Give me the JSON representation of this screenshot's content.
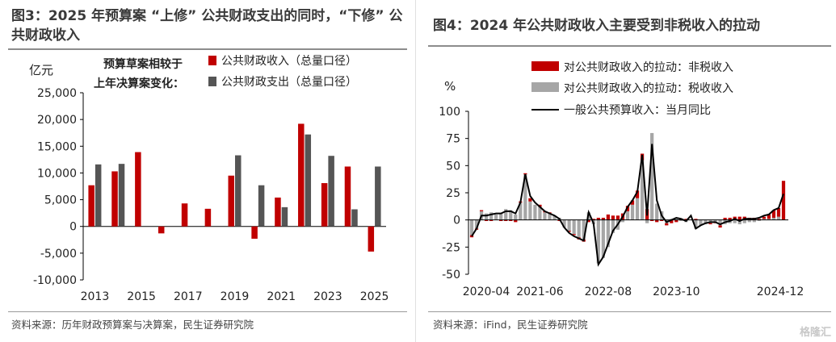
{
  "left": {
    "title": "图3：2025 年预算案 “上修” 公共财政支出的同时，“下修” 公共财政收入",
    "source": "资料来源：历年财政预算案与决算案，民生证券研究院"
  },
  "right": {
    "title": "图4：2024 年公共财政收入主要受到非税收入的拉动",
    "source": "资料来源：iFind，民生证券研究院"
  },
  "watermark": "格隆汇",
  "chart_data": [
    {
      "type": "bar",
      "unit_label": "亿元",
      "legend_note": [
        "预算草案相较于",
        "上年决算案变化："
      ],
      "legend_placement": "top",
      "categories": [
        "2013",
        "2014",
        "2015",
        "2016",
        "2017",
        "2018",
        "2019",
        "2020",
        "2021",
        "2022",
        "2023",
        "2024",
        "2025"
      ],
      "tick_labels": [
        "2013",
        "2015",
        "2017",
        "2019",
        "2021",
        "2023",
        "2025"
      ],
      "series": [
        {
          "name": "公共财政收入（总量口径）",
          "color": "#c00000",
          "values": [
            7700,
            10300,
            13900,
            -1300,
            4300,
            3300,
            9500,
            -2300,
            5400,
            19200,
            8100,
            11200,
            -4700
          ]
        },
        {
          "name": "公共财政支出（总量口径）",
          "color": "#555555",
          "values": [
            11600,
            11700,
            null,
            null,
            null,
            null,
            13300,
            7700,
            3600,
            17200,
            13200,
            3200,
            11200
          ]
        }
      ],
      "ylim": [
        -10000,
        25000
      ],
      "yticks": [
        "-10,000",
        "-5,000",
        "0",
        "5,000",
        "10,000",
        "15,000",
        "20,000",
        "25,000"
      ],
      "grid": false
    },
    {
      "type": "bar",
      "unit_label": "%",
      "legend_placement": "top",
      "x_start": "2020-04",
      "x_end": "2024-12",
      "tick_labels": [
        "2020-04",
        "2021-06",
        "2022-08",
        "2023-10",
        "2024-12"
      ],
      "ylim": [
        -50,
        100
      ],
      "yticks": [
        "-50",
        "-25",
        "0",
        "25",
        "50",
        "75",
        "100"
      ],
      "grid": false,
      "series": [
        {
          "name": "对公共财政收入的拉动：非税收入",
          "type": "bar",
          "color": "#c00000",
          "values": [
            -2,
            -1,
            1,
            -1,
            -1,
            0,
            -1,
            -1,
            -1,
            -2,
            1,
            1,
            3,
            0,
            2,
            1,
            1,
            0,
            -1,
            0,
            -1,
            -1,
            -2,
            -2,
            -2,
            1,
            2,
            2,
            5,
            4,
            4,
            6,
            5,
            4,
            7,
            6,
            10,
            -1,
            -2,
            -1,
            -2,
            -3,
            -2,
            1,
            1,
            0,
            1,
            0,
            0,
            -1,
            -1,
            -2,
            2,
            2,
            3,
            3,
            3,
            2,
            2,
            1,
            2,
            4,
            7,
            8,
            36
          ]
        },
        {
          "name": "对公共财政收入的拉动：税收收入",
          "type": "bar",
          "color": "#a6a6a6",
          "values": [
            -14,
            -8,
            8,
            6,
            7,
            5,
            6,
            10,
            9,
            5,
            16,
            42,
            17,
            14,
            12,
            7,
            6,
            4,
            2,
            -7,
            -10,
            -13,
            -16,
            -18,
            7,
            -4,
            -40,
            -35,
            -25,
            -12,
            -9,
            -2,
            8,
            14,
            20,
            55,
            -3,
            80,
            15,
            8,
            -3,
            1,
            1,
            -1,
            -2,
            0,
            -8,
            -5,
            -4,
            -3,
            -2,
            -5,
            -4,
            -3,
            -3,
            -4,
            -3,
            -2,
            -2,
            -1,
            1,
            1,
            2,
            3,
            0
          ]
        },
        {
          "name": "一般公共预算收入：当月同比",
          "type": "line",
          "color": "#000000",
          "values": [
            -15,
            -8,
            4,
            4,
            5,
            6,
            6,
            8,
            8,
            6,
            16,
            42,
            22,
            16,
            12,
            8,
            6,
            4,
            1,
            -7,
            -12,
            -15,
            -17,
            -19,
            7,
            -3,
            -41,
            -34,
            -22,
            -10,
            -4,
            3,
            12,
            18,
            26,
            60,
            4,
            70,
            18,
            4,
            -2,
            0,
            2,
            1,
            -1,
            4,
            -8,
            -5,
            -3,
            -2,
            -2,
            -4,
            -2,
            -1,
            1,
            -1,
            1,
            1,
            1,
            2,
            4,
            5,
            9,
            11,
            24
          ]
        }
      ]
    }
  ]
}
